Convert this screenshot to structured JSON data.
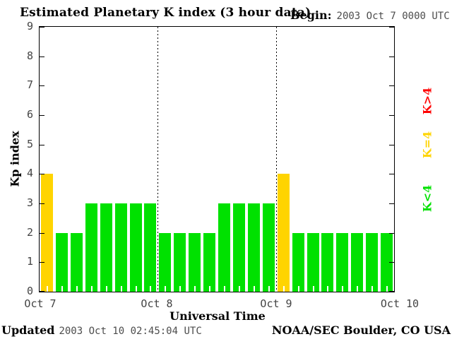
{
  "title": "Estimated Planetary K index (3 hour data)",
  "begin": {
    "label": "Begin:",
    "value": "2003 Oct 7 0000 UTC"
  },
  "footer": {
    "updated_label": "Updated",
    "updated_value": "2003 Oct 10 02:45:04 UTC",
    "credit": "NOAA/SEC Boulder, CO USA"
  },
  "legend": [
    {
      "label": "K>4",
      "color": "#ff0000"
    },
    {
      "label": "K=4",
      "color": "#ffd400"
    },
    {
      "label": "K<4",
      "color": "#00e100"
    }
  ],
  "chart_data": {
    "type": "bar",
    "title": "Estimated Planetary K index (3 hour data)",
    "xlabel": "Universal Time",
    "ylabel": "Kp index",
    "ylim": [
      0,
      9
    ],
    "yticks": [
      0,
      1,
      2,
      3,
      4,
      5,
      6,
      7,
      8,
      9
    ],
    "x_tick_labels": [
      "Oct 7",
      "Oct 8",
      "Oct 9",
      "Oct 10"
    ],
    "hours_per_bar": 3,
    "bars_per_day": 8,
    "begin": "2003 Oct 7 0000 UTC",
    "values": [
      4,
      2,
      2,
      3,
      3,
      3,
      3,
      3,
      2,
      2,
      2,
      2,
      3,
      3,
      3,
      3,
      4,
      2,
      2,
      2,
      2,
      2,
      2,
      2
    ],
    "colors": {
      "k_lt_4": "#00e100",
      "k_eq_4": "#ffd400",
      "k_gt_4": "#ff0000"
    },
    "day_boundary_lines": "dotted",
    "grid": false,
    "legend_position": "right-outside-rotated"
  }
}
